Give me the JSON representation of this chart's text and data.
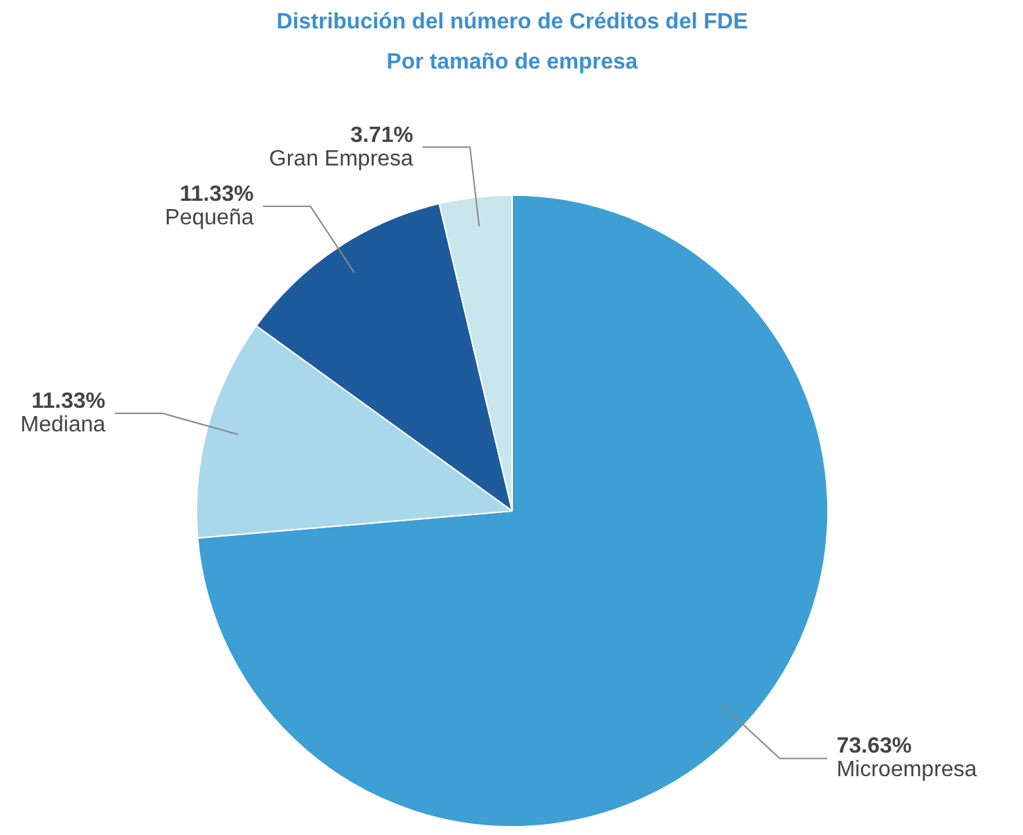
{
  "chart_data": {
    "type": "pie",
    "title": "Distribución del número de Créditos del FDE",
    "subtitle": "Por tamaño de empresa",
    "categories": [
      "Microempresa",
      "Mediana",
      "Pequeña",
      "Gran Empresa"
    ],
    "values": [
      73.63,
      11.33,
      11.33,
      3.71
    ],
    "value_labels": [
      "73.63%",
      "11.33%",
      "11.33%",
      "3.71%"
    ],
    "colors": [
      "#3d9fd3",
      "#a9d8ea",
      "#1d5b9c",
      "#c9e6ec"
    ]
  }
}
